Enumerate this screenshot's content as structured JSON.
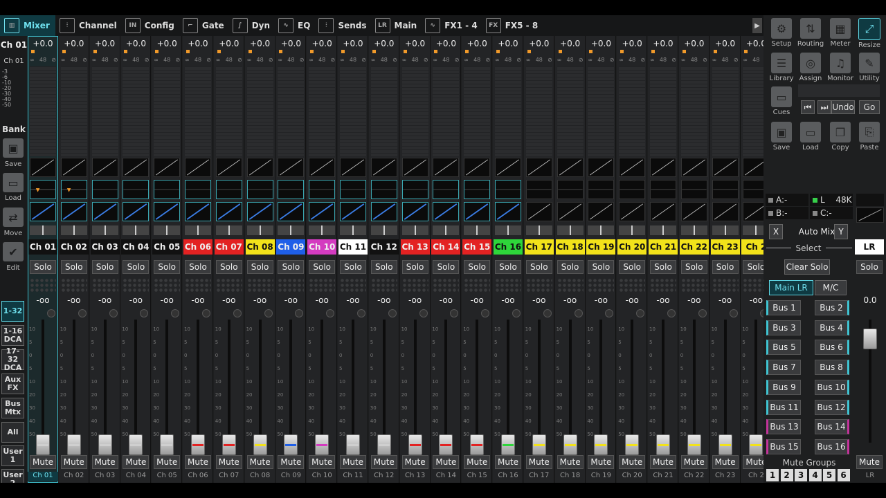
{
  "tabs": [
    {
      "label": "Mixer",
      "icon": "mixer-icon",
      "active": true
    },
    {
      "label": "Channel",
      "icon": "channel-icon"
    },
    {
      "label": "Config",
      "icon": "config-icon"
    },
    {
      "label": "Gate",
      "icon": "gate-icon"
    },
    {
      "label": "Dyn",
      "icon": "dynamics-icon"
    },
    {
      "label": "EQ",
      "icon": "eq-icon"
    },
    {
      "label": "Sends",
      "icon": "sends-icon"
    },
    {
      "label": "Main",
      "icon": "main-icon"
    },
    {
      "label": "FX1 - 4",
      "icon": "fx1-icon"
    },
    {
      "label": "FX5 - 8",
      "icon": "fx5-icon"
    }
  ],
  "left": {
    "selected_channel": "Ch 01",
    "selected_sub": "Ch 01",
    "scale": [
      "-3",
      "-6",
      "-10",
      "-20",
      "-30",
      "-40",
      "-50"
    ],
    "bank": "Bank",
    "save": "Save",
    "load": "Load",
    "move": "Move",
    "edit": "Edit",
    "layers": [
      "1-32",
      "1-16 DCA",
      "17-32 DCA",
      "Aux FX",
      "Bus Mtx",
      "All",
      "User 1",
      "User 2"
    ]
  },
  "strip_common": {
    "gain": "+0.0",
    "phantom": "48",
    "solo": "Solo",
    "mute": "Mute",
    "level": "-oo"
  },
  "channels": [
    {
      "name": "Ch 01",
      "color": "#111111",
      "text": "#eeeeee",
      "fader": 0.05,
      "cap": "#cfcfcf",
      "sel": true,
      "eq": "active"
    },
    {
      "name": "Ch 02",
      "color": "#111111",
      "text": "#eeeeee",
      "fader": 0.05,
      "cap": "#cfcfcf",
      "eq": "active"
    },
    {
      "name": "Ch 03",
      "color": "#111111",
      "text": "#eeeeee",
      "fader": 0.05,
      "cap": "#cfcfcf",
      "eq": "teal"
    },
    {
      "name": "Ch 04",
      "color": "#111111",
      "text": "#eeeeee",
      "fader": 0.05,
      "cap": "#cfcfcf",
      "eq": "teal"
    },
    {
      "name": "Ch 05",
      "color": "#111111",
      "text": "#eeeeee",
      "fader": 0.05,
      "cap": "#cfcfcf",
      "eq": "teal"
    },
    {
      "name": "Ch 06",
      "color": "#e32222",
      "text": "#eeeeee",
      "fader": 0.05,
      "cap": "#e32222",
      "eq": "teal"
    },
    {
      "name": "Ch 07",
      "color": "#e32222",
      "text": "#eeeeee",
      "fader": 0.05,
      "cap": "#e32222",
      "eq": "teal"
    },
    {
      "name": "Ch 08",
      "color": "#f2e21a",
      "text": "#111111",
      "fader": 0.05,
      "cap": "#f2e21a",
      "eq": "teal"
    },
    {
      "name": "Ch 09",
      "color": "#1f5fe8",
      "text": "#eeeeee",
      "fader": 0.05,
      "cap": "#1f5fe8",
      "eq": "teal"
    },
    {
      "name": "Ch 10",
      "color": "#d43bc0",
      "text": "#eeeeee",
      "fader": 0.05,
      "cap": "#d43bc0",
      "eq": "teal"
    },
    {
      "name": "Ch 11",
      "color": "#ffffff",
      "text": "#111111",
      "fader": 0.05,
      "cap": "#cfcfcf",
      "eq": "teal"
    },
    {
      "name": "Ch 12",
      "color": "#111111",
      "text": "#eeeeee",
      "fader": 0.05,
      "cap": "#cfcfcf",
      "eq": "teal"
    },
    {
      "name": "Ch 13",
      "color": "#e32222",
      "text": "#eeeeee",
      "fader": 0.05,
      "cap": "#e32222",
      "eq": "teal"
    },
    {
      "name": "Ch 14",
      "color": "#e32222",
      "text": "#eeeeee",
      "fader": 0.05,
      "cap": "#e32222",
      "eq": "teal"
    },
    {
      "name": "Ch 15",
      "color": "#e32222",
      "text": "#eeeeee",
      "fader": 0.05,
      "cap": "#e32222",
      "eq": "teal"
    },
    {
      "name": "Ch 16",
      "color": "#2ed63a",
      "text": "#111111",
      "fader": 0.05,
      "cap": "#2ed63a",
      "eq": "teal"
    },
    {
      "name": "Ch 17",
      "color": "#f2e21a",
      "text": "#111111",
      "fader": 0.05,
      "cap": "#f2e21a",
      "eq": "plain"
    },
    {
      "name": "Ch 18",
      "color": "#f2e21a",
      "text": "#111111",
      "fader": 0.05,
      "cap": "#f2e21a",
      "eq": "plain"
    },
    {
      "name": "Ch 19",
      "color": "#f2e21a",
      "text": "#111111",
      "fader": 0.05,
      "cap": "#f2e21a",
      "eq": "plain"
    },
    {
      "name": "Ch 20",
      "color": "#f2e21a",
      "text": "#111111",
      "fader": 0.05,
      "cap": "#f2e21a",
      "eq": "plain"
    },
    {
      "name": "Ch 21",
      "color": "#f2e21a",
      "text": "#111111",
      "fader": 0.05,
      "cap": "#f2e21a",
      "eq": "plain"
    },
    {
      "name": "Ch 22",
      "color": "#f2e21a",
      "text": "#111111",
      "fader": 0.05,
      "cap": "#f2e21a",
      "eq": "plain"
    },
    {
      "name": "Ch 23",
      "color": "#f2e21a",
      "text": "#111111",
      "fader": 0.05,
      "cap": "#f2e21a",
      "eq": "plain"
    },
    {
      "name": "Ch 2",
      "color": "#f2e21a",
      "text": "#111111",
      "fader": 0.05,
      "cap": "#f2e21a",
      "eq": "plain",
      "foot": "Ch 2"
    }
  ],
  "fader_scale": [
    "10",
    "5",
    "0",
    "5",
    "10",
    "20",
    "30",
    "40",
    "50"
  ],
  "right": {
    "buttons": [
      {
        "label": "Setup",
        "icon": "gear-icon"
      },
      {
        "label": "Routing",
        "icon": "routing-icon"
      },
      {
        "label": "Meter",
        "icon": "meter-icon"
      },
      {
        "label": "Resize",
        "icon": "resize-icon"
      },
      {
        "label": "Library",
        "icon": "library-icon"
      },
      {
        "label": "Assign",
        "icon": "assign-icon"
      },
      {
        "label": "Monitor",
        "icon": "headphones-icon"
      },
      {
        "label": "Utility",
        "icon": "wrench-icon"
      },
      {
        "label": "Cues",
        "icon": "cues-icon"
      },
      {
        "label": "Save",
        "icon": "save-icon"
      },
      {
        "label": "Load",
        "icon": "folder-icon"
      },
      {
        "label": "Copy",
        "icon": "copy-icon"
      },
      {
        "label": "Paste",
        "icon": "paste-icon"
      }
    ],
    "undo": "Undo",
    "go": "Go",
    "status_a": "A:-",
    "status_l": "L",
    "status_rate": "48K",
    "status_b": "B:-",
    "status_c": "C:-",
    "x": "X",
    "automix": "Auto Mix",
    "y": "Y",
    "select": "Select",
    "clear_solo": "Clear Solo",
    "main_lr": "Main LR",
    "mc": "M/C",
    "buses": [
      "Bus 1",
      "Bus 2",
      "Bus 3",
      "Bus 4",
      "Bus 5",
      "Bus 6",
      "Bus 7",
      "Bus 8",
      "Bus 9",
      "Bus 10",
      "Bus 11",
      "Bus 12",
      "Bus 13",
      "Bus 14",
      "Bus 15",
      "Bus 16"
    ],
    "lr": "LR",
    "lr_solo": "Solo",
    "lr_level": "0.0",
    "lr_mute": "Mute",
    "lr_foot": "LR",
    "lr_fader": 0.85,
    "mute_groups": "Mute Groups",
    "mute_group_nums": [
      "1",
      "2",
      "3",
      "4",
      "5",
      "6"
    ]
  }
}
